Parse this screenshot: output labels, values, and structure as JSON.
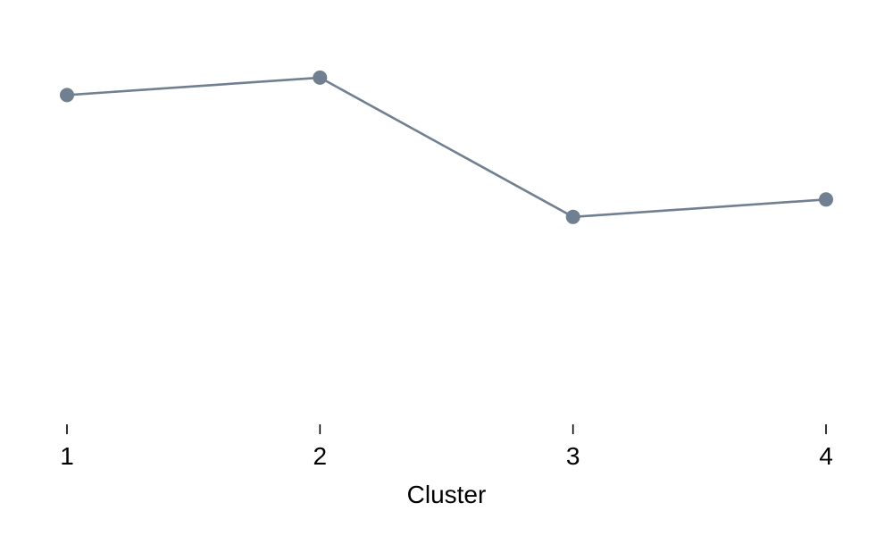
{
  "chart_data": {
    "type": "line",
    "categories": [
      "1",
      "2",
      "3",
      "4"
    ],
    "series": [
      {
        "values": [
          0.72,
          0.78,
          0.3,
          0.36
        ]
      }
    ],
    "title": "",
    "xlabel": "Cluster",
    "ylabel": "",
    "ylim": [
      -0.4,
      0.98
    ],
    "grid": false,
    "legend": "none",
    "colors": {
      "line": "#708090",
      "marker": "#708090",
      "tick": "#000000"
    }
  }
}
